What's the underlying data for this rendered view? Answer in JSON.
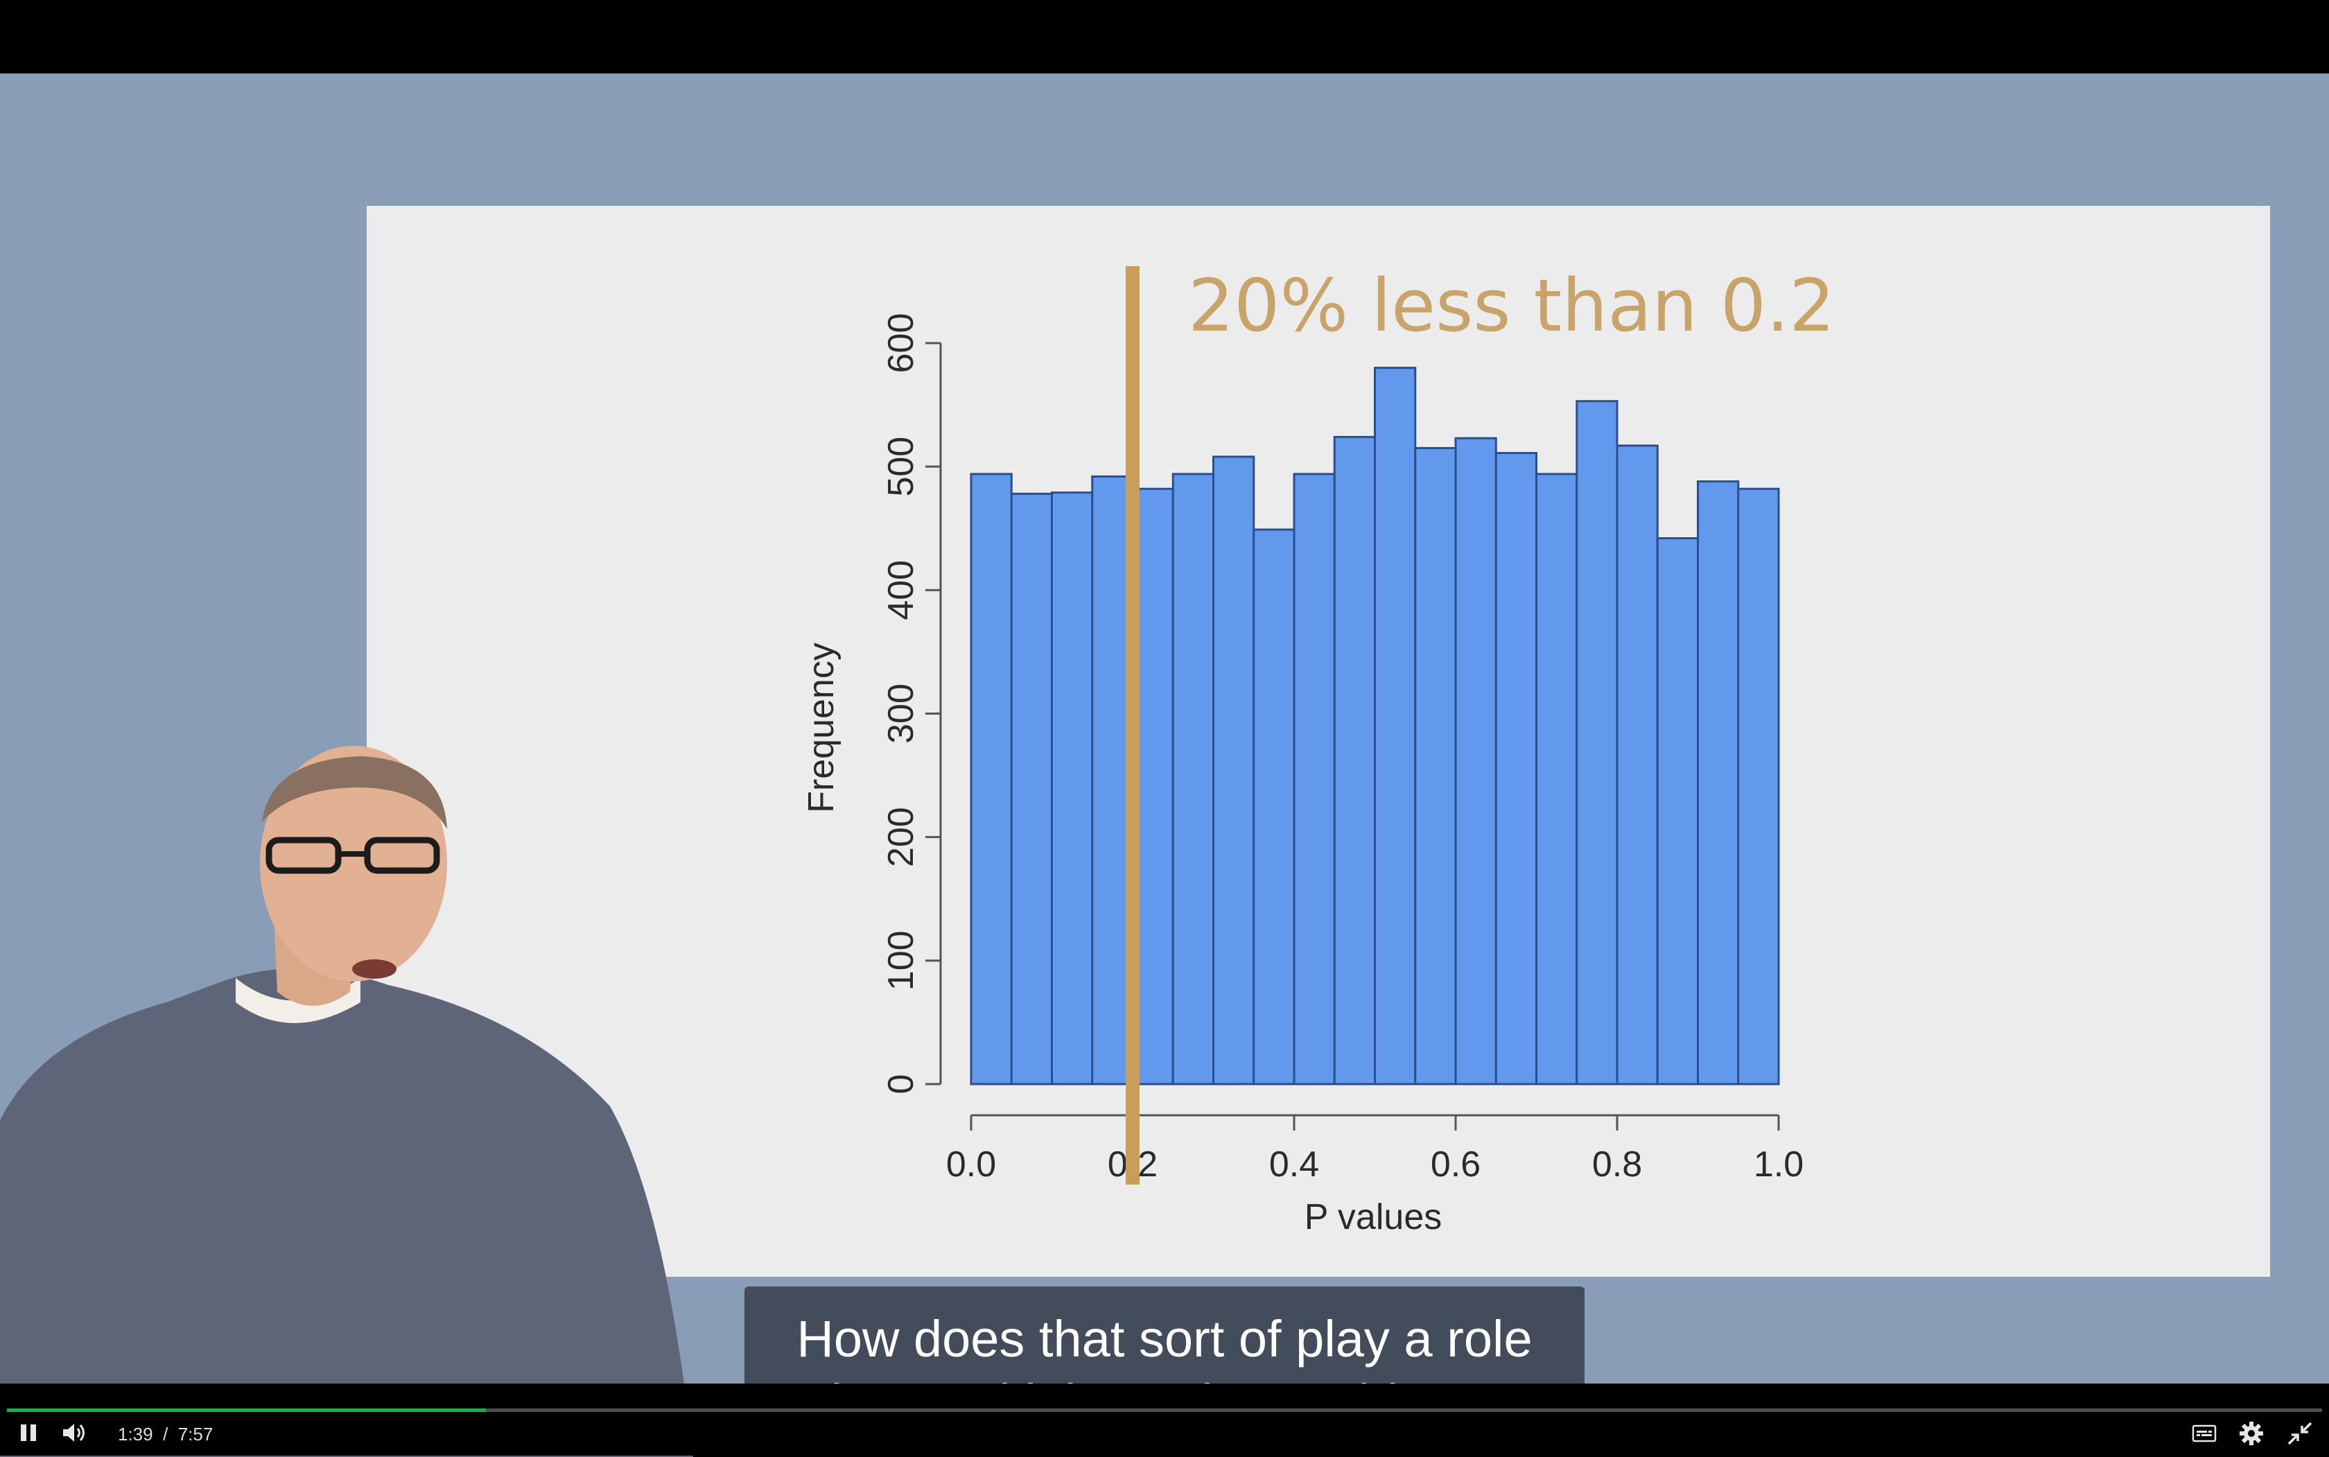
{
  "player": {
    "caption_line1": "How does that sort of play a role",
    "caption_line2": "in a multiple testing problem?",
    "current_time": "1:39",
    "separator": "/",
    "duration": "7:57",
    "progress": 0.207,
    "icons": [
      "pause-icon",
      "volume-icon",
      "captions-icon",
      "gear-icon",
      "exit-fullscreen-icon"
    ]
  },
  "colors": {
    "bar_fill": "#6399ed",
    "bar_stroke": "#2b4e8c",
    "highlight": "#c99e5a",
    "annotation": "#c9a46a",
    "progress": "#1fad53"
  },
  "chart_data": {
    "type": "bar",
    "title": "",
    "annotation": "20% less than 0.2",
    "xlabel": "P values",
    "ylabel": "Frequency",
    "bin_edges": [
      0.0,
      0.05,
      0.1,
      0.15,
      0.2,
      0.25,
      0.3,
      0.35,
      0.4,
      0.45,
      0.5,
      0.55,
      0.6,
      0.65,
      0.7,
      0.75,
      0.8,
      0.85,
      0.9,
      0.95,
      1.0
    ],
    "values": [
      494,
      478,
      479,
      492,
      482,
      494,
      508,
      449,
      494,
      524,
      580,
      515,
      523,
      511,
      494,
      553,
      517,
      442,
      488,
      482
    ],
    "xlim": [
      0,
      1
    ],
    "ylim": [
      0,
      600
    ],
    "xticks": [
      "0.0",
      "0.2",
      "0.4",
      "0.6",
      "0.8",
      "1.0"
    ],
    "yticks": [
      "0",
      "100",
      "200",
      "300",
      "400",
      "500",
      "600"
    ],
    "vline_x": 0.2,
    "grid": false
  }
}
